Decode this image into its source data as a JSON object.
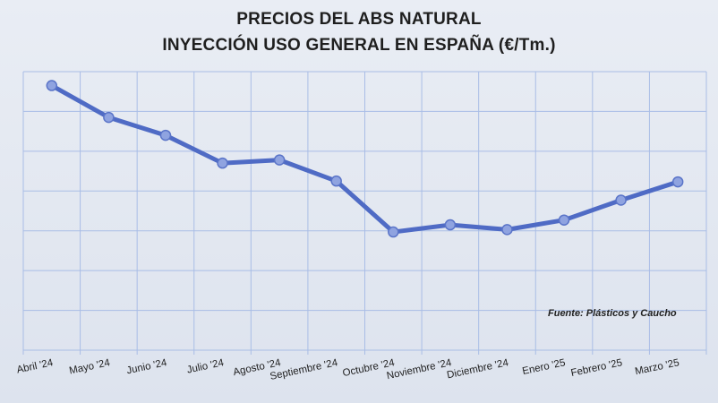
{
  "chart_data": {
    "type": "line",
    "title": [
      "PRECIOS DEL ABS NATURAL",
      "INYECCIÓN USO GENERAL EN ESPAÑA (€/Tm.)"
    ],
    "categories": [
      "Abril '24",
      "Mayo '24",
      "Junio '24",
      "Julio '24",
      "Agosto '24",
      "Septiembre '24",
      "Octubre '24",
      "Noviembre '24",
      "Diciembre '24",
      "Enero '25",
      "Febrero '25",
      "Marzo '25"
    ],
    "series": [
      {
        "values": [
          6.65,
          5.85,
          5.4,
          4.7,
          4.78,
          4.25,
          2.97,
          3.15,
          3.03,
          3.27,
          3.77,
          4.23
        ]
      }
    ],
    "ylim": [
      0,
      7
    ],
    "y_tick_labels_shown": false,
    "grid": true,
    "colors": {
      "line": "#4f6bc5",
      "marker_fill": "#8fa3e0",
      "marker_stroke": "#5a74c8",
      "grid": "#a9bde6"
    },
    "annotation": "Fuente: Plásticos y Caucho"
  }
}
